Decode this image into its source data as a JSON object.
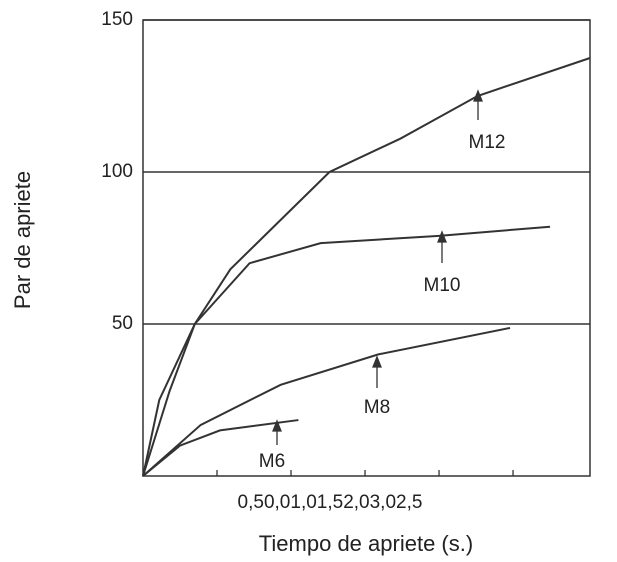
{
  "chart_data": {
    "type": "line",
    "xlabel": "Tiempo de apriete (s.)",
    "ylabel": "Par de apriete",
    "x_tick_text": "0,50,01,01,52,03,02,5",
    "xlim": [
      0,
      3.02
    ],
    "ylim": [
      0,
      150
    ],
    "xticks": [
      0.5,
      1,
      1.5,
      2,
      2.5
    ],
    "yticks": [
      50,
      100,
      150
    ],
    "grid": true,
    "series": [
      {
        "name": "M12",
        "color": "#333333",
        "x": [
          0,
          0.11,
          0.35,
          0.59,
          1.26,
          1.74,
          2.26,
          3.02
        ],
        "values": [
          0,
          25,
          50,
          68,
          100,
          111,
          125,
          137.5
        ]
      },
      {
        "name": "M10",
        "color": "#333333",
        "x": [
          0,
          0.18,
          0.35,
          0.72,
          1.2,
          2.0,
          2.75
        ],
        "values": [
          0,
          28,
          50,
          70,
          76.6,
          79,
          82
        ]
      },
      {
        "name": "M8",
        "color": "#333333",
        "x": [
          0,
          0.39,
          0.93,
          1.59,
          2.48
        ],
        "values": [
          0,
          16.8,
          30,
          40,
          48.7
        ]
      },
      {
        "name": "M6",
        "color": "#333333",
        "x": [
          0,
          0.25,
          0.52,
          1.05
        ],
        "values": [
          0,
          10,
          15,
          18.4
        ]
      }
    ]
  }
}
